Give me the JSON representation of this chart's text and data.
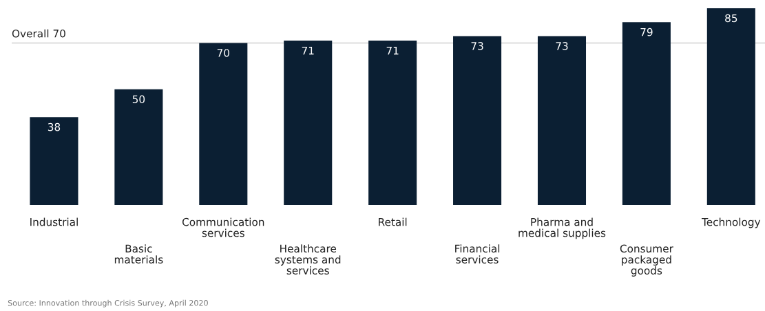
{
  "chart_data": {
    "type": "bar",
    "categories": [
      "Industrial",
      "Basic\nmaterials",
      "Communication\nservices",
      "Healthcare\nsystems and\nservices",
      "Retail",
      "Financial\nservices",
      "Pharma and\nmedical supplies",
      "Consumer\npackaged\ngoods",
      "Technology"
    ],
    "values": [
      38,
      50,
      70,
      71,
      71,
      73,
      73,
      79,
      85
    ],
    "color": "#0b1f33",
    "data_labels": true,
    "ref_lines": [
      {
        "axis": "y",
        "value": 70,
        "label": "Overall 70",
        "color": "#d0d0d0"
      }
    ],
    "annotations": [
      "Source: Innovation through Crisis Survey, April 2020"
    ]
  }
}
